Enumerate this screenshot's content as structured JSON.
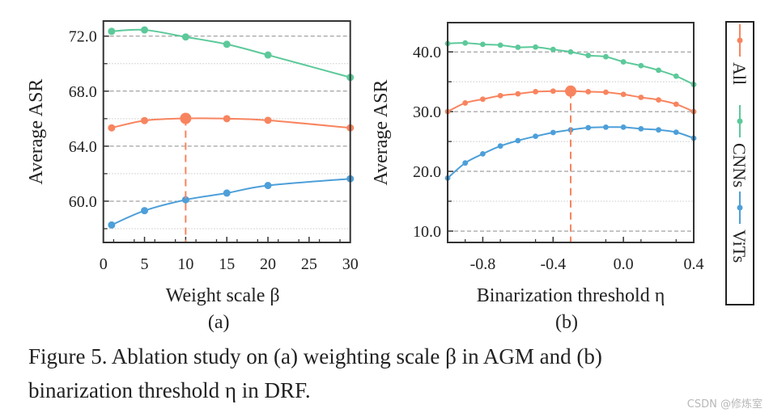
{
  "colors": {
    "All": "#f8845f",
    "CNNs": "#5cc99a",
    "ViTs": "#4d9fd9"
  },
  "legend": {
    "entries": [
      "All",
      "CNNs",
      "ViTs"
    ],
    "placement": "right, vertical"
  },
  "chart_data": [
    {
      "type": "line",
      "panel_label": "(a)",
      "xlabel": "Weight scale β",
      "ylabel": "Average ASR",
      "xlim": [
        0,
        30
      ],
      "ylim": [
        57.0,
        73.1
      ],
      "xticks": [
        0,
        5,
        10,
        15,
        20,
        25,
        30
      ],
      "xtick_labels": [
        "0",
        "5",
        "10",
        "15",
        "20",
        "25",
        "30"
      ],
      "yticks": [
        60,
        64,
        68,
        72
      ],
      "ytick_labels": [
        "60.0",
        "64.0",
        "68.0",
        "72.0"
      ],
      "grid": "horizontal dashed at major ticks, dotted at minor",
      "x": [
        1,
        5,
        10,
        15,
        20,
        30
      ],
      "series": [
        {
          "name": "All",
          "values": [
            65.33,
            65.86,
            66.02,
            66.0,
            65.88,
            65.33
          ]
        },
        {
          "name": "CNNs",
          "values": [
            72.35,
            72.45,
            71.94,
            71.41,
            70.63,
            69.0
          ]
        },
        {
          "name": "ViTs",
          "values": [
            58.27,
            59.31,
            60.1,
            60.59,
            61.14,
            61.63
          ]
        }
      ],
      "highlight": {
        "series": "All",
        "x": 10,
        "y": 66.02
      }
    },
    {
      "type": "line",
      "panel_label": "(b)",
      "xlabel": "Binarization threshold η",
      "ylabel": "Average ASR",
      "xlim": [
        -1.0,
        0.4
      ],
      "ylim": [
        8.1,
        44.9
      ],
      "xticks": [
        -0.8,
        -0.4,
        0.0,
        0.4
      ],
      "xtick_labels": [
        "-0.8",
        "-0.4",
        "0.0",
        "0.4"
      ],
      "yticks": [
        10,
        20,
        30,
        40
      ],
      "ytick_labels": [
        "10.0",
        "20.0",
        "30.0",
        "40.0"
      ],
      "grid": "horizontal dashed at major ticks, dotted at minor",
      "x": [
        -1.0,
        -0.9,
        -0.8,
        -0.7,
        -0.6,
        -0.5,
        -0.4,
        -0.3,
        -0.2,
        -0.1,
        0.0,
        0.1,
        0.2,
        0.3,
        0.4
      ],
      "series": [
        {
          "name": "All",
          "values": [
            30.0,
            31.45,
            32.08,
            32.67,
            32.98,
            33.34,
            33.43,
            33.43,
            33.34,
            33.25,
            32.89,
            32.39,
            31.96,
            31.24,
            30.0
          ]
        },
        {
          "name": "CNNs",
          "values": [
            41.4,
            41.49,
            41.26,
            41.13,
            40.77,
            40.81,
            40.41,
            40.0,
            39.41,
            39.19,
            38.33,
            37.7,
            36.93,
            35.94,
            34.54
          ]
        },
        {
          "name": "ViTs",
          "values": [
            18.87,
            21.4,
            22.93,
            24.24,
            25.15,
            25.87,
            26.5,
            26.95,
            27.31,
            27.4,
            27.4,
            27.13,
            26.95,
            26.55,
            25.55
          ]
        }
      ],
      "highlight": {
        "series": "All",
        "x": -0.3,
        "y": 33.43
      }
    }
  ],
  "caption": {
    "line1": "Figure 5. Ablation study on (a) weighting scale β in AGM and (b)",
    "line2": "binarization threshold η in DRF."
  },
  "watermark": "CSDN @修炼室"
}
